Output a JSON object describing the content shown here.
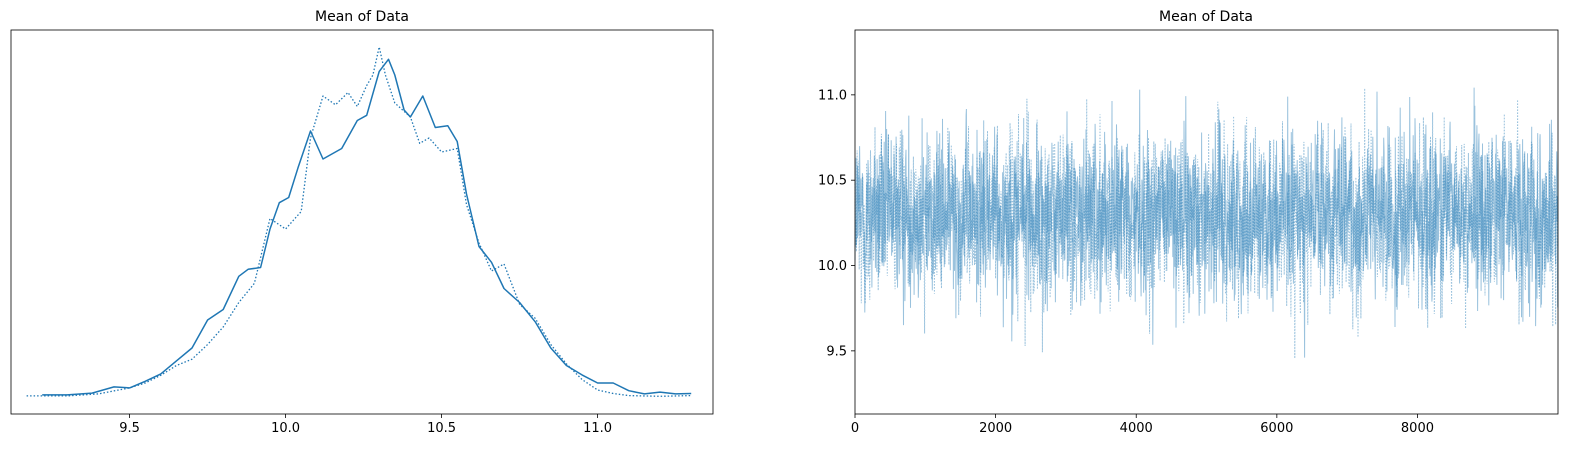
{
  "chart_data": [
    {
      "type": "line",
      "title": "Mean of Data",
      "xlabel": "",
      "ylabel": "",
      "xlim": [
        9.12,
        11.37
      ],
      "ylim": [
        0,
        1.0
      ],
      "x_ticks": [
        "9.5",
        "10.0",
        "10.5",
        "11.0"
      ],
      "y_ticks": [],
      "grid": false,
      "series": [
        {
          "line_style": "solid",
          "color": "#1f77b4",
          "points": [
            [
              9.22,
              0.006
            ],
            [
              9.3,
              0.006
            ],
            [
              9.38,
              0.011
            ],
            [
              9.45,
              0.029
            ],
            [
              9.5,
              0.026
            ],
            [
              9.55,
              0.045
            ],
            [
              9.6,
              0.066
            ],
            [
              9.65,
              0.103
            ],
            [
              9.7,
              0.14
            ],
            [
              9.75,
              0.22
            ],
            [
              9.8,
              0.25
            ],
            [
              9.85,
              0.345
            ],
            [
              9.88,
              0.365
            ],
            [
              9.92,
              0.37
            ],
            [
              9.95,
              0.48
            ],
            [
              9.98,
              0.555
            ],
            [
              10.01,
              0.57
            ],
            [
              10.04,
              0.655
            ],
            [
              10.08,
              0.76
            ],
            [
              10.12,
              0.68
            ],
            [
              10.18,
              0.71
            ],
            [
              10.23,
              0.79
            ],
            [
              10.26,
              0.805
            ],
            [
              10.3,
              0.93
            ],
            [
              10.33,
              0.965
            ],
            [
              10.35,
              0.92
            ],
            [
              10.38,
              0.82
            ],
            [
              10.4,
              0.8
            ],
            [
              10.44,
              0.86
            ],
            [
              10.48,
              0.77
            ],
            [
              10.52,
              0.775
            ],
            [
              10.55,
              0.73
            ],
            [
              10.58,
              0.58
            ],
            [
              10.62,
              0.43
            ],
            [
              10.66,
              0.385
            ],
            [
              10.7,
              0.31
            ],
            [
              10.75,
              0.27
            ],
            [
              10.8,
              0.215
            ],
            [
              10.85,
              0.14
            ],
            [
              10.9,
              0.09
            ],
            [
              10.95,
              0.063
            ],
            [
              11.0,
              0.04
            ],
            [
              11.05,
              0.04
            ],
            [
              11.1,
              0.018
            ],
            [
              11.15,
              0.009
            ],
            [
              11.2,
              0.014
            ],
            [
              11.25,
              0.009
            ],
            [
              11.3,
              0.01
            ]
          ]
        },
        {
          "line_style": "dotted",
          "color": "#1f77b4",
          "points": [
            [
              9.17,
              0.003
            ],
            [
              9.3,
              0.003
            ],
            [
              9.4,
              0.009
            ],
            [
              9.5,
              0.026
            ],
            [
              9.55,
              0.04
            ],
            [
              9.6,
              0.062
            ],
            [
              9.65,
              0.09
            ],
            [
              9.7,
              0.108
            ],
            [
              9.75,
              0.15
            ],
            [
              9.8,
              0.2
            ],
            [
              9.85,
              0.27
            ],
            [
              9.9,
              0.325
            ],
            [
              9.95,
              0.51
            ],
            [
              10.0,
              0.48
            ],
            [
              10.05,
              0.53
            ],
            [
              10.08,
              0.74
            ],
            [
              10.12,
              0.86
            ],
            [
              10.16,
              0.835
            ],
            [
              10.2,
              0.87
            ],
            [
              10.23,
              0.83
            ],
            [
              10.26,
              0.89
            ],
            [
              10.28,
              0.92
            ],
            [
              10.3,
              1.0
            ],
            [
              10.32,
              0.92
            ],
            [
              10.35,
              0.84
            ],
            [
              10.4,
              0.8
            ],
            [
              10.43,
              0.725
            ],
            [
              10.46,
              0.74
            ],
            [
              10.5,
              0.7
            ],
            [
              10.55,
              0.71
            ],
            [
              10.58,
              0.55
            ],
            [
              10.62,
              0.44
            ],
            [
              10.66,
              0.36
            ],
            [
              10.7,
              0.38
            ],
            [
              10.75,
              0.265
            ],
            [
              10.8,
              0.225
            ],
            [
              10.85,
              0.15
            ],
            [
              10.9,
              0.095
            ],
            [
              10.95,
              0.05
            ],
            [
              11.0,
              0.02
            ],
            [
              11.05,
              0.01
            ],
            [
              11.1,
              0.004
            ],
            [
              11.2,
              0.002
            ],
            [
              11.3,
              0.004
            ]
          ]
        }
      ]
    },
    {
      "type": "line",
      "title": "Mean of Data",
      "xlabel": "",
      "ylabel": "",
      "xlim": [
        0,
        9999
      ],
      "ylim": [
        9.13,
        11.38
      ],
      "x_ticks": [
        "0",
        "2000",
        "4000",
        "6000",
        "8000"
      ],
      "y_ticks": [
        "9.5",
        "10.0",
        "10.5",
        "11.0"
      ],
      "grid": false,
      "series": [
        {
          "line_style": "solid",
          "color": "#1f77b4",
          "opacity": 0.45,
          "mean": 10.3,
          "sd": 0.25,
          "n": 10000,
          "min": 9.23,
          "max": 11.3
        },
        {
          "line_style": "dotted",
          "color": "#1f77b4",
          "opacity": 0.45,
          "mean": 10.28,
          "sd": 0.25,
          "n": 10000,
          "min": 9.17,
          "max": 11.3
        }
      ]
    }
  ]
}
